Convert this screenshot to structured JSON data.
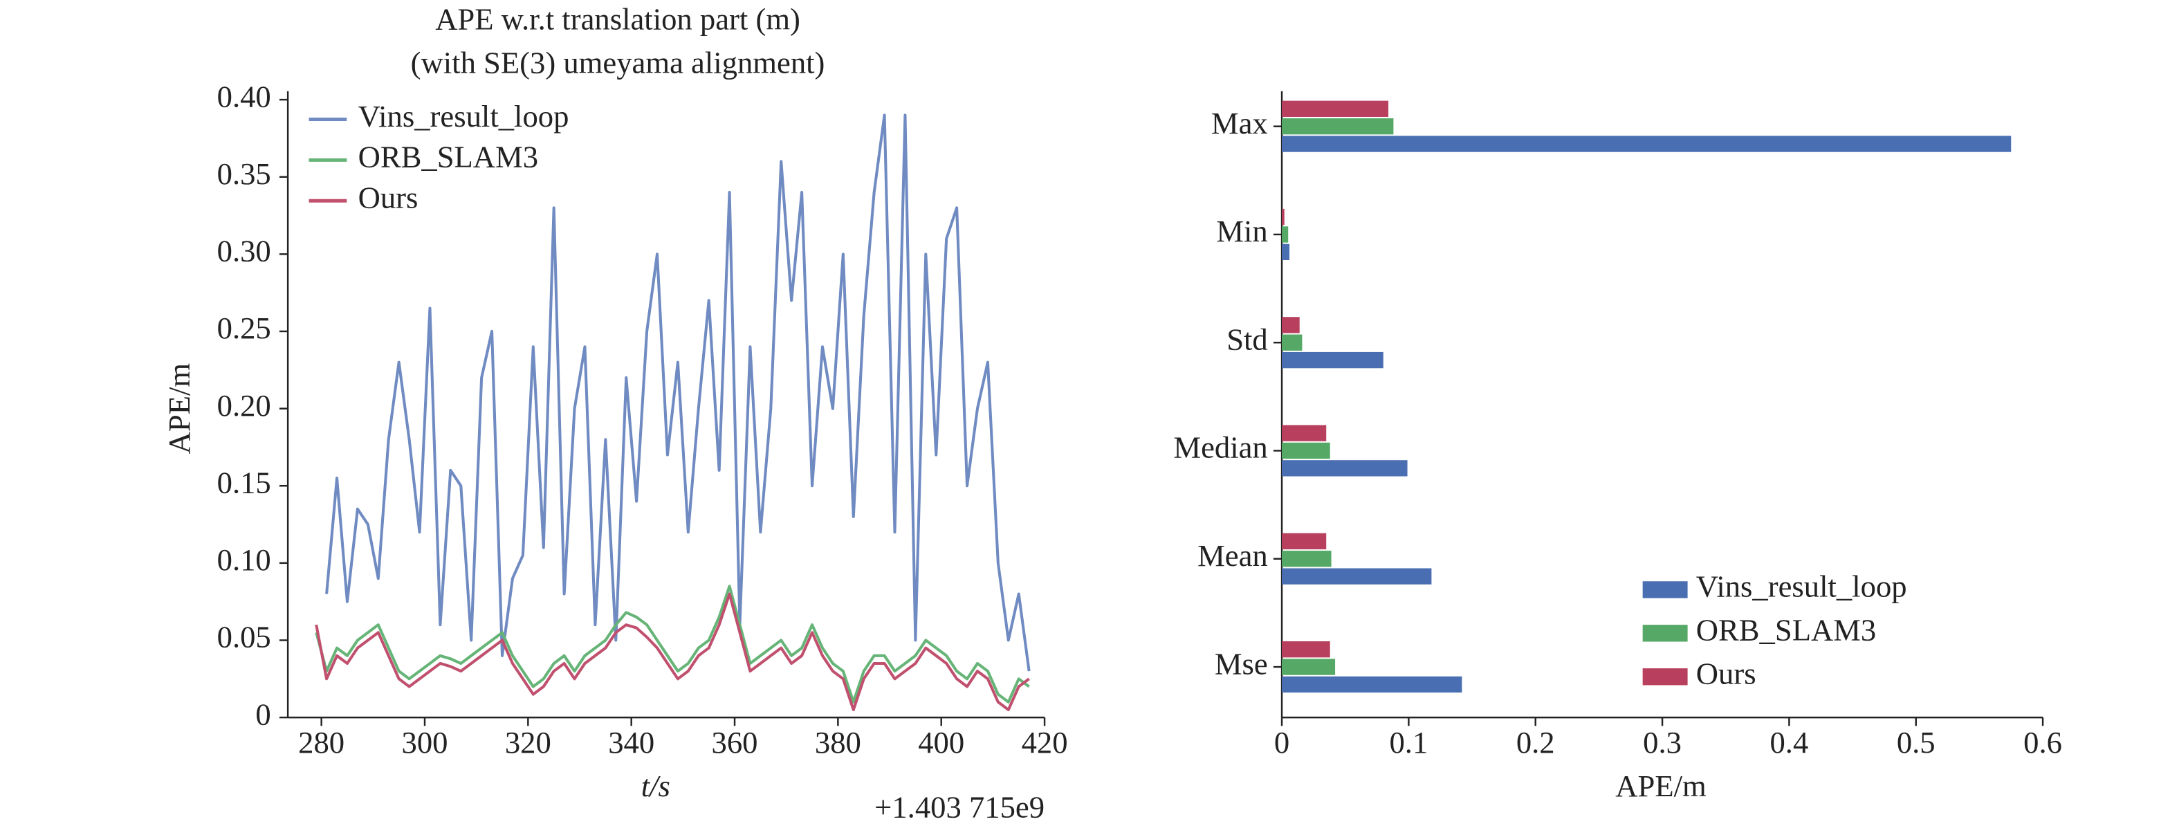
{
  "chart_data": [
    {
      "type": "line",
      "title": "APE w.r.t translation part (m)",
      "subtitle": "(with SE(3) umeyama alignment)",
      "xlabel": "t/s",
      "ylabel": "APE/m",
      "x_offset_label": "+1.403 715e9",
      "xlim": [
        273.5,
        420
      ],
      "ylim": [
        0,
        0.4
      ],
      "xticks": [
        280,
        300,
        320,
        340,
        360,
        380,
        400,
        420
      ],
      "yticks": [
        0,
        0.05,
        {
          "value": 0.1,
          "label": "0.10"
        },
        0.15,
        {
          "value": 0.2,
          "label": "0.20"
        },
        0.25,
        {
          "value": 0.3,
          "label": "0.30"
        },
        0.35,
        {
          "value": 0.4,
          "label": "0.40"
        }
      ],
      "legend": "upper left",
      "x": [
        279,
        281,
        283,
        285,
        287,
        289,
        291,
        293,
        295,
        297,
        299,
        301,
        303,
        305,
        307,
        309,
        311,
        313,
        315,
        317,
        319,
        321,
        323,
        325,
        327,
        329,
        331,
        333,
        335,
        337,
        339,
        341,
        343,
        345,
        347,
        349,
        351,
        353,
        355,
        357,
        359,
        361,
        363,
        365,
        367,
        369,
        371,
        373,
        375,
        377,
        379,
        381,
        383,
        385,
        387,
        389,
        391,
        393,
        395,
        397,
        399,
        401,
        403,
        405,
        407,
        409,
        411,
        413,
        415,
        417
      ],
      "series": [
        {
          "name": "Vins_result_loop",
          "color": "#6f8bc2",
          "values": [
            null,
            0.08,
            0.155,
            0.075,
            0.135,
            0.125,
            0.09,
            0.18,
            0.23,
            0.18,
            0.12,
            0.265,
            0.06,
            0.16,
            0.15,
            0.05,
            0.22,
            0.25,
            0.04,
            0.09,
            0.105,
            0.24,
            0.11,
            0.33,
            0.08,
            0.2,
            0.24,
            0.06,
            0.18,
            0.05,
            0.22,
            0.14,
            0.25,
            0.3,
            0.17,
            0.23,
            0.12,
            0.2,
            0.27,
            0.16,
            0.34,
            0.06,
            0.24,
            0.12,
            0.2,
            0.36,
            0.27,
            0.34,
            0.15,
            0.24,
            0.2,
            0.3,
            0.13,
            0.26,
            0.34,
            0.39,
            0.12,
            0.39,
            0.05,
            0.3,
            0.17,
            0.31,
            0.33,
            0.15,
            0.2,
            0.23,
            0.1,
            0.05,
            0.08,
            0.03
          ]
        },
        {
          "name": "ORB_SLAM3",
          "color": "#66b477",
          "values": [
            0.055,
            0.03,
            0.045,
            0.04,
            0.05,
            0.055,
            0.06,
            0.045,
            0.03,
            0.025,
            0.03,
            0.035,
            0.04,
            0.038,
            0.035,
            0.04,
            0.045,
            0.05,
            0.055,
            0.04,
            0.03,
            0.02,
            0.025,
            0.035,
            0.04,
            0.03,
            0.04,
            0.045,
            0.05,
            0.06,
            0.068,
            0.065,
            0.06,
            0.05,
            0.04,
            0.03,
            0.035,
            0.045,
            0.05,
            0.065,
            0.085,
            0.06,
            0.035,
            0.04,
            0.045,
            0.05,
            0.04,
            0.045,
            0.06,
            0.045,
            0.035,
            0.03,
            0.01,
            0.03,
            0.04,
            0.04,
            0.03,
            0.035,
            0.04,
            0.05,
            0.045,
            0.04,
            0.03,
            0.025,
            0.035,
            0.03,
            0.015,
            0.01,
            0.025,
            0.02
          ]
        },
        {
          "name": "Ours",
          "color": "#c0506e",
          "values": [
            0.06,
            0.025,
            0.04,
            0.035,
            0.045,
            0.05,
            0.055,
            0.04,
            0.025,
            0.02,
            0.025,
            0.03,
            0.035,
            0.033,
            0.03,
            0.035,
            0.04,
            0.045,
            0.05,
            0.035,
            0.025,
            0.015,
            0.02,
            0.03,
            0.035,
            0.025,
            0.035,
            0.04,
            0.045,
            0.055,
            0.06,
            0.058,
            0.052,
            0.045,
            0.035,
            0.025,
            0.03,
            0.04,
            0.045,
            0.06,
            0.08,
            0.055,
            0.03,
            0.035,
            0.04,
            0.045,
            0.035,
            0.04,
            0.055,
            0.04,
            0.03,
            0.025,
            0.005,
            0.025,
            0.035,
            0.035,
            0.025,
            0.03,
            0.035,
            0.045,
            0.04,
            0.035,
            0.025,
            0.02,
            0.03,
            0.025,
            0.01,
            0.005,
            0.02,
            0.025
          ]
        }
      ]
    },
    {
      "type": "barh",
      "xlabel": "APE/m",
      "xlim": [
        0,
        0.6
      ],
      "xticks": [
        0,
        0.1,
        0.2,
        0.3,
        0.4,
        0.5,
        0.6
      ],
      "legend": "lower right",
      "categories": [
        "Max",
        "Min",
        "Std",
        "Median",
        "Mean",
        "Mse"
      ],
      "series": [
        {
          "name": "Vins_result_loop",
          "color": "#4a6eb2",
          "values": [
            0.575,
            0.006,
            0.08,
            0.099,
            0.118,
            0.142
          ]
        },
        {
          "name": "ORB_SLAM3",
          "color": "#55a866",
          "values": [
            0.088,
            0.005,
            0.016,
            0.038,
            0.039,
            0.042
          ]
        },
        {
          "name": "Ours",
          "color": "#b8405e",
          "values": [
            0.084,
            0.002,
            0.014,
            0.035,
            0.035,
            0.038
          ]
        }
      ]
    }
  ]
}
